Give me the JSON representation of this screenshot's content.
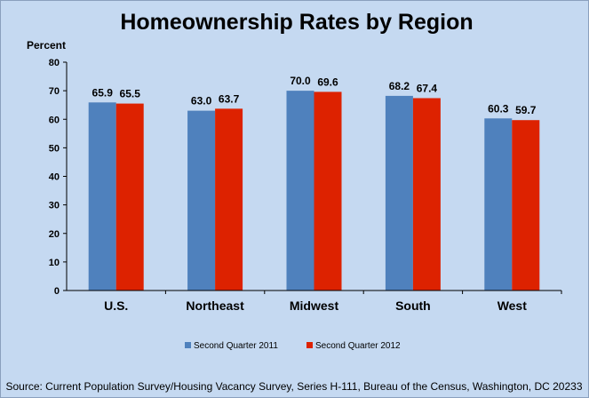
{
  "chart_data": {
    "type": "bar",
    "title": "Homeownership Rates by Region",
    "ylabel": "Percent",
    "xlabel": "",
    "ylim": [
      0,
      80
    ],
    "yticks": [
      0,
      10,
      20,
      30,
      40,
      50,
      60,
      70,
      80
    ],
    "categories": [
      "U.S.",
      "Northeast",
      "Midwest",
      "South",
      "West"
    ],
    "series": [
      {
        "name": "Second Quarter 2011",
        "color": "#4f81bd",
        "values": [
          65.9,
          63.0,
          70.0,
          68.2,
          60.3
        ],
        "labels": [
          "65.9",
          "63.0",
          "70.0",
          "68.2",
          "60.3"
        ]
      },
      {
        "name": "Second Quarter 2012",
        "color": "#dd2200",
        "values": [
          65.5,
          63.7,
          69.6,
          67.4,
          59.7
        ],
        "labels": [
          "65.5",
          "63.7",
          "69.6",
          "67.4",
          "59.7"
        ]
      }
    ],
    "grid": false,
    "legend_position": "bottom"
  },
  "source": "Source: Current Population Survey/Housing Vacancy Survey, Series H-111, Bureau of the Census, Washington, DC 20233"
}
